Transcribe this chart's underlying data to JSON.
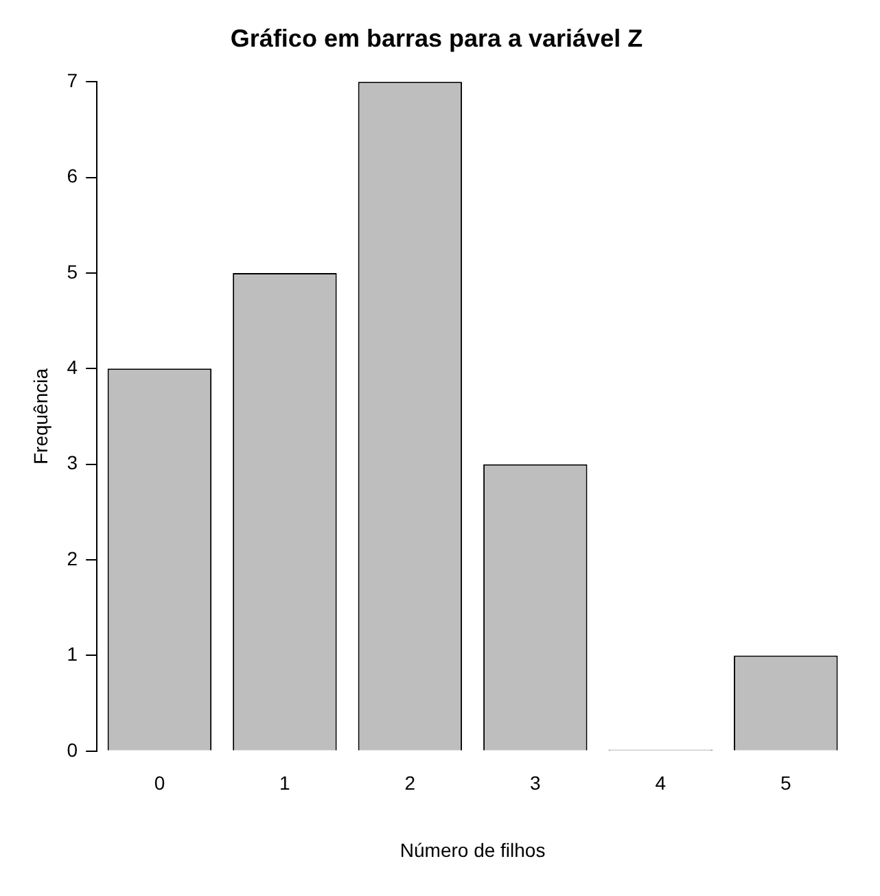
{
  "chart_data": {
    "type": "bar",
    "title": "Gráfico em barras para a variável Z",
    "xlabel": "Número de filhos",
    "ylabel": "Frequência",
    "categories": [
      "0",
      "1",
      "2",
      "3",
      "4",
      "5"
    ],
    "values": [
      4,
      5,
      7,
      3,
      0,
      1
    ],
    "color": "#bebebe",
    "ylim": [
      0,
      7
    ],
    "yticks": [
      0,
      1,
      2,
      3,
      4,
      5,
      6,
      7
    ],
    "grid": false,
    "legend": false
  }
}
